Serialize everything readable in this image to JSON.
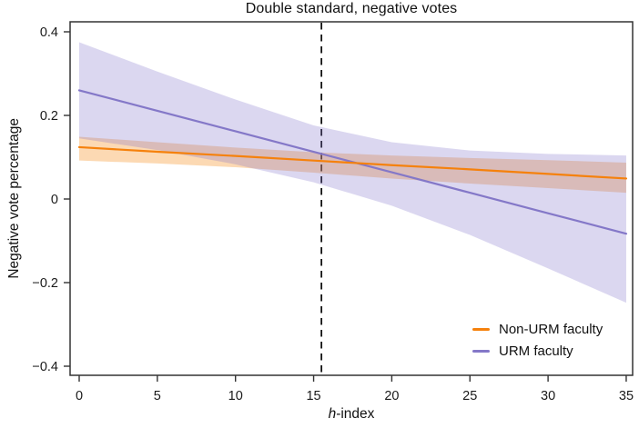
{
  "figure": {
    "title": "Double standard, negative votes",
    "y_axis_label": "Negative vote percentage",
    "x_axis_label": {
      "italic": "h",
      "rest": "-index"
    }
  },
  "legend": {
    "position": "lower-right",
    "items": [
      {
        "label": "Non-URM faculty",
        "color": "#f5810c"
      },
      {
        "label": "URM faculty",
        "color": "#8478c8"
      }
    ]
  },
  "chart_data": {
    "type": "line",
    "title": "Double standard, negative votes",
    "xlabel": "h-index",
    "ylabel": "Negative vote percentage",
    "xlim": [
      -0.55,
      35.4
    ],
    "ylim": [
      -0.425,
      0.425
    ],
    "grid": false,
    "frame": "full-box",
    "axis_color": "#333333",
    "vline": {
      "x": 15.5,
      "style": "dashed",
      "color": "#111111"
    },
    "xticks": [
      {
        "value": 0,
        "label": "0"
      },
      {
        "value": 5,
        "label": "5"
      },
      {
        "value": 10,
        "label": "10"
      },
      {
        "value": 15,
        "label": "15"
      },
      {
        "value": 20,
        "label": "20"
      },
      {
        "value": 25,
        "label": "25"
      },
      {
        "value": 30,
        "label": "30"
      },
      {
        "value": 35,
        "label": "35"
      }
    ],
    "yticks": [
      {
        "value": 0.4,
        "label": "0.4"
      },
      {
        "value": 0.2,
        "label": "0.2"
      },
      {
        "value": 0,
        "label": "0"
      },
      {
        "value": -0.2,
        "label": "−0.2"
      },
      {
        "value": -0.4,
        "label": "−0.4"
      }
    ],
    "x": [
      0,
      5,
      10,
      15,
      20,
      25,
      30,
      35
    ],
    "series": [
      {
        "name": "Non-URM faculty",
        "color": "#f5810c",
        "band_fill": "rgba(246,140,25,0.33)",
        "y": [
          0.124,
          0.113,
          0.103,
          0.092,
          0.081,
          0.071,
          0.06,
          0.049
        ],
        "ci_upper": [
          0.149,
          0.136,
          0.123,
          0.112,
          0.104,
          0.098,
          0.093,
          0.087
        ],
        "ci_lower": [
          0.092,
          0.085,
          0.076,
          0.063,
          0.049,
          0.037,
          0.026,
          0.015
        ]
      },
      {
        "name": "URM faculty",
        "color": "#8478c8",
        "band_fill": "rgba(124,112,200,0.28)",
        "y": [
          0.26,
          0.211,
          0.162,
          0.113,
          0.064,
          0.015,
          -0.034,
          -0.083
        ],
        "ci_upper": [
          0.375,
          0.305,
          0.238,
          0.176,
          0.136,
          0.116,
          0.108,
          0.104
        ],
        "ci_lower": [
          0.145,
          0.117,
          0.083,
          0.04,
          -0.016,
          -0.086,
          -0.166,
          -0.248
        ]
      }
    ]
  }
}
